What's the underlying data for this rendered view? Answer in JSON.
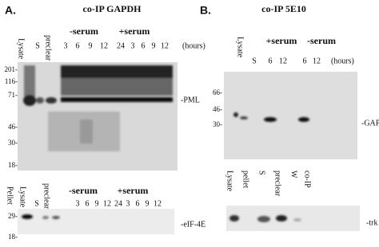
{
  "panel_a": {
    "label": "A.",
    "title": "co-IP GAPDH",
    "top_blot": {
      "lanes": [
        "Lysate",
        "S",
        "preclear"
      ],
      "groups": [
        "-serum",
        "+serum"
      ],
      "times": [
        "3",
        "6",
        "9",
        "12",
        "24",
        "3",
        "6",
        "9",
        "12"
      ],
      "unit": "(hours)",
      "markers": [
        "201-",
        "116-",
        "71-",
        "46-",
        "30-",
        "18-"
      ],
      "band_label": "-PML"
    },
    "bottom_blot": {
      "lanes": [
        "Pellet",
        "Lysate",
        "S",
        "preclear"
      ],
      "groups": [
        "-serum",
        "+serum"
      ],
      "times": [
        "3",
        "6",
        "9",
        "12",
        "24",
        "3",
        "6",
        "9",
        "12"
      ],
      "markers": [
        "29-",
        "18-"
      ],
      "band_label": "-eIF-4E"
    }
  },
  "panel_b": {
    "label": "B.",
    "title": "co-IP 5E10",
    "top_blot": {
      "lanes": [
        "Lysate",
        "S"
      ],
      "groups": [
        "+serum",
        "-serum"
      ],
      "times": [
        "6",
        "12",
        "6",
        "12"
      ],
      "unit": "(hours)",
      "markers": [
        "66-",
        "46-",
        "30-"
      ],
      "band_label": "-GAPDH"
    },
    "bottom_blot": {
      "lanes": [
        "Lysate",
        "pellet",
        "S",
        "preclear",
        "W",
        "co-IP"
      ],
      "band_label": "-trk"
    }
  }
}
